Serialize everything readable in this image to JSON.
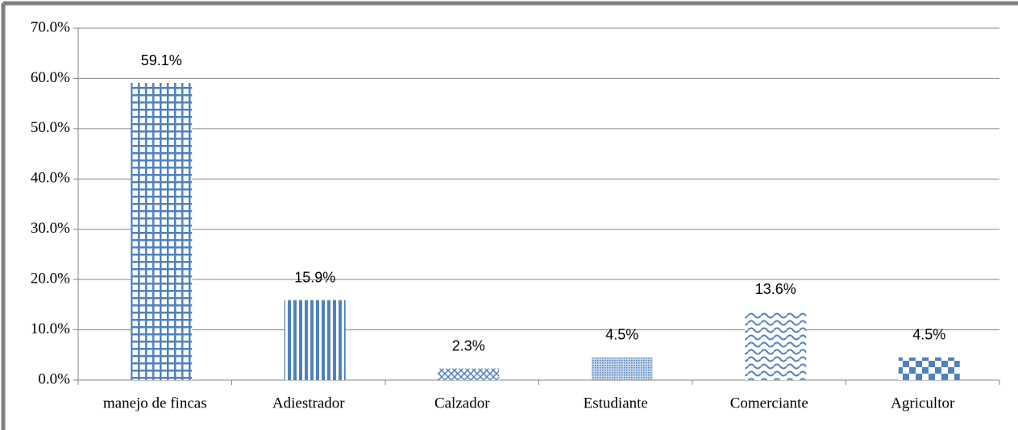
{
  "chart_data": {
    "type": "bar",
    "categories": [
      "manejo de fincas",
      "Adiestrador",
      "Calzador",
      "Estudiante",
      "Comerciante",
      "Agricultor"
    ],
    "values": [
      59.1,
      15.9,
      2.3,
      4.5,
      13.6,
      4.5
    ],
    "value_labels": [
      "59.1%",
      "15.9%",
      "2.3%",
      "4.5%",
      "13.6%",
      "4.5%"
    ],
    "color": "#4f81bd",
    "ylim": [
      0,
      70
    ],
    "yticks": [
      {
        "value": 0,
        "label": "0.0%"
      },
      {
        "value": 10,
        "label": "10.0%"
      },
      {
        "value": 20,
        "label": "20.0%"
      },
      {
        "value": 30,
        "label": "30.0%"
      },
      {
        "value": 40,
        "label": "40.0%"
      },
      {
        "value": 50,
        "label": "50.0%"
      },
      {
        "value": 60,
        "label": "60.0%"
      },
      {
        "value": 70,
        "label": "70.0%"
      }
    ],
    "grid": true
  }
}
